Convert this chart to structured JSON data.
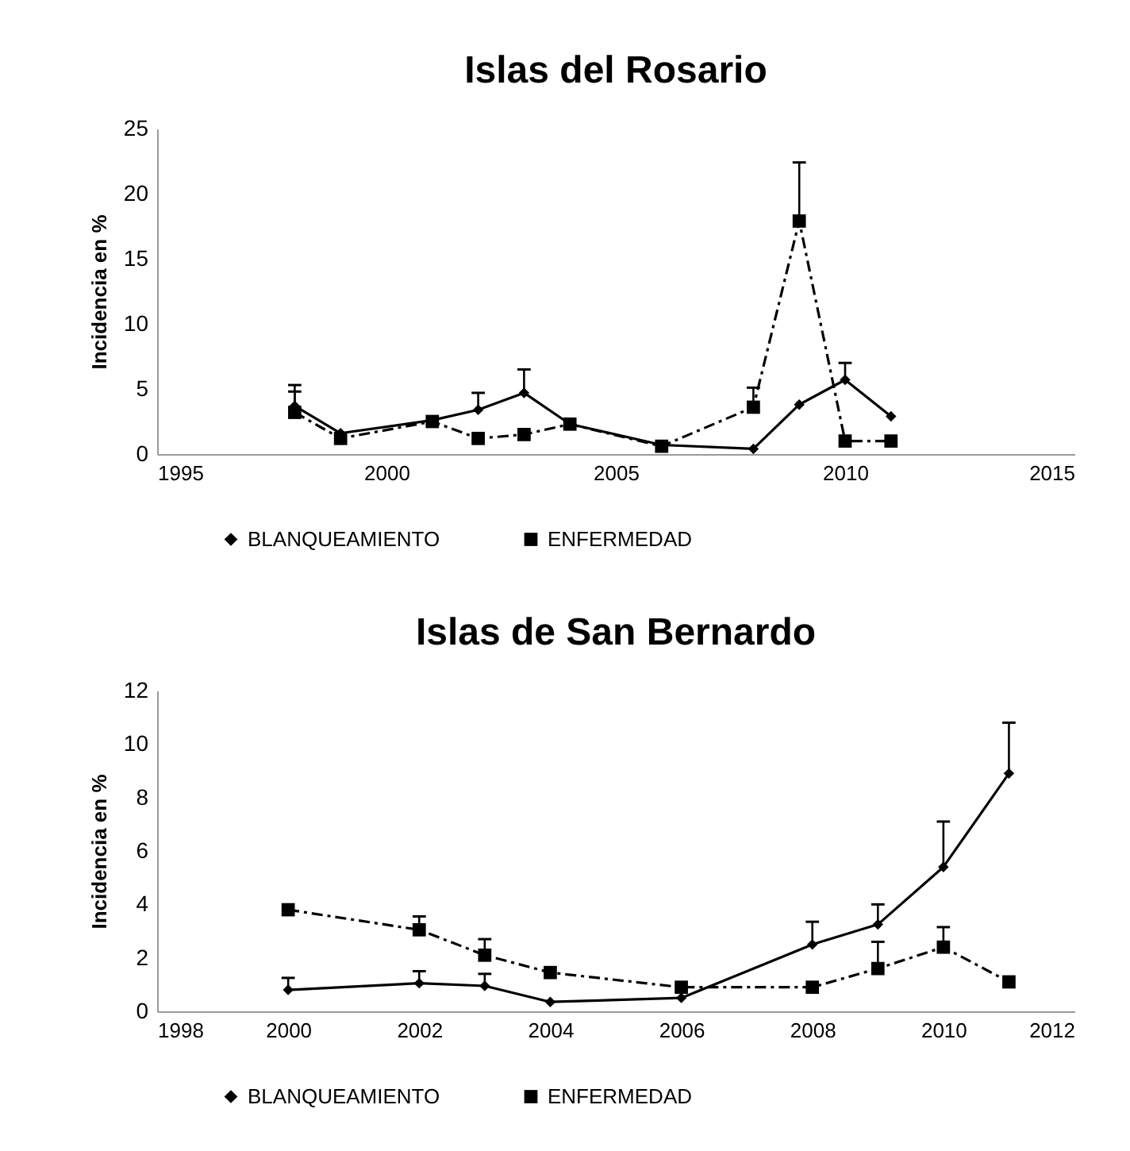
{
  "chart_data": [
    {
      "type": "line",
      "title": "Islas del Rosario",
      "ylabel": "Incidencia en %",
      "x": [
        1998,
        1999,
        2001,
        2002,
        2003,
        2004,
        2006,
        2008,
        2009,
        2010,
        2011
      ],
      "xlim": [
        1995,
        2015
      ],
      "xticks": [
        1995,
        2000,
        2005,
        2010,
        2015
      ],
      "ylim": [
        0,
        25
      ],
      "yticks": [
        0,
        5,
        10,
        15,
        20,
        25
      ],
      "grid": false,
      "legend": "bottom",
      "series": [
        {
          "name": "BLANQUEAMIENTO",
          "color": "#000000",
          "marker": "diamond",
          "line_style": "solid",
          "values": [
            3.7,
            1.6,
            2.6,
            3.4,
            4.7,
            2.3,
            0.7,
            0.4,
            3.8,
            5.7,
            2.9
          ],
          "errors": [
            [
              3.7,
              5.3
            ],
            null,
            null,
            [
              3.4,
              4.7
            ],
            [
              4.7,
              6.5
            ],
            null,
            null,
            null,
            null,
            [
              5.7,
              7.0
            ],
            null
          ]
        },
        {
          "name": "ENFERMEDAD",
          "color": "#000000",
          "marker": "square",
          "line_style": "dashed",
          "values": [
            3.2,
            1.2,
            2.5,
            1.2,
            1.5,
            2.3,
            0.6,
            3.6,
            17.9,
            1.0,
            1.0
          ],
          "errors": [
            [
              3.2,
              4.8
            ],
            null,
            null,
            null,
            null,
            null,
            null,
            [
              3.6,
              5.1
            ],
            [
              17.9,
              22.4
            ],
            null,
            null
          ]
        }
      ]
    },
    {
      "type": "line",
      "title": "Islas de San Bernardo",
      "ylabel": "Incidencia en %",
      "x": [
        2000,
        2002,
        2003,
        2004,
        2006,
        2008,
        2009,
        2010,
        2011
      ],
      "xlim": [
        1998,
        2012
      ],
      "xticks": [
        1998,
        2000,
        2002,
        2004,
        2006,
        2008,
        2010,
        2012
      ],
      "ylim": [
        0,
        12
      ],
      "yticks": [
        0,
        2,
        4,
        6,
        8,
        10,
        12
      ],
      "grid": false,
      "legend": "bottom",
      "series": [
        {
          "name": "BLANQUEAMIENTO",
          "color": "#000000",
          "marker": "diamond",
          "line_style": "solid",
          "values": [
            0.8,
            1.05,
            0.95,
            0.35,
            0.5,
            2.5,
            3.25,
            5.4,
            8.9
          ],
          "errors": [
            [
              0.8,
              1.25
            ],
            [
              1.05,
              1.5
            ],
            [
              0.95,
              1.4
            ],
            null,
            null,
            [
              2.5,
              3.35
            ],
            [
              3.25,
              4.0
            ],
            [
              5.4,
              7.1
            ],
            [
              8.9,
              10.8
            ]
          ]
        },
        {
          "name": "ENFERMEDAD",
          "color": "#000000",
          "marker": "square",
          "line_style": "dashed",
          "values": [
            3.8,
            3.05,
            2.1,
            1.45,
            0.9,
            0.9,
            1.6,
            2.4,
            1.1
          ],
          "errors": [
            null,
            [
              3.05,
              3.55
            ],
            [
              2.1,
              2.7
            ],
            null,
            null,
            null,
            [
              1.6,
              2.6
            ],
            [
              2.4,
              3.15
            ],
            null
          ]
        }
      ]
    }
  ]
}
